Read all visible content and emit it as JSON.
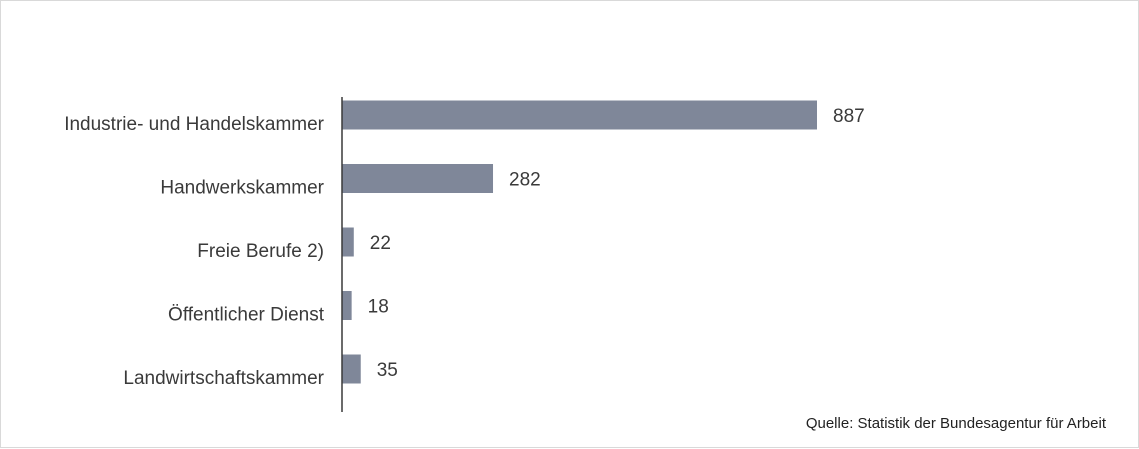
{
  "chart_data": {
    "type": "bar",
    "orientation": "horizontal",
    "categories": [
      "Industrie- und Handelskammer",
      "Handwerkskammer",
      "Freie Berufe 2)",
      "Öffentlicher Dienst",
      "Landwirtschaftskammer"
    ],
    "values": [
      887,
      282,
      22,
      18,
      35
    ],
    "xlim": [
      0,
      887
    ],
    "bar_color": "#7f8799",
    "grid": false,
    "legend": "none"
  },
  "source": "Quelle: Statistik der Bundesagentur für Arbeit"
}
